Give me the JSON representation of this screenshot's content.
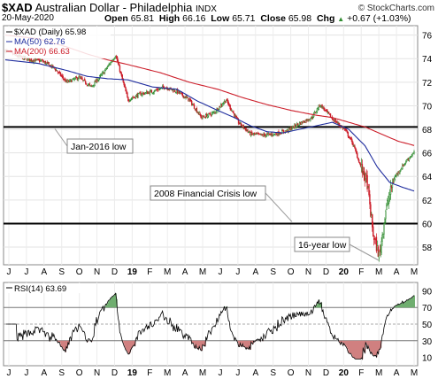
{
  "header": {
    "symbol": "$XAD",
    "name": "Australian Dollar - Philadelphia",
    "exchange": "INDX",
    "date": "20-May-2020",
    "open_label": "Open",
    "open": "65.81",
    "high_label": "High",
    "high": "66.16",
    "low_label": "Low",
    "low": "65.71",
    "close_label": "Close",
    "close": "65.98",
    "chg_label": "Chg",
    "chg": "+0.67 (+1.03%)",
    "chg_arrow": "▲",
    "watermark": "© StockCharts.com"
  },
  "chart_data": [
    {
      "type": "line",
      "legend": {
        "main": "$XAD (Daily) 65.98",
        "ma50": "MA(50) 62.76",
        "ma200": "MA(200) 66.63"
      },
      "colors": {
        "price": "#000000",
        "ma50": "#1f2d9e",
        "ma200": "#cc1e2a",
        "up": "#2e8b2e",
        "down": "#cc1e2a"
      },
      "ylim": [
        56.5,
        76.8
      ],
      "y_ticks": [
        58,
        60,
        62,
        64,
        66,
        68,
        70,
        72,
        74,
        76
      ],
      "x_tick_labels": [
        "J",
        "J",
        "A",
        "S",
        "O",
        "N",
        "D",
        "19",
        "F",
        "M",
        "A",
        "M",
        "J",
        "J",
        "A",
        "S",
        "O",
        "N",
        "D",
        "20",
        "F",
        "M",
        "A",
        "M"
      ],
      "price_keypoints": [
        [
          0,
          74.7
        ],
        [
          0.03,
          74.2
        ],
        [
          0.06,
          73.9
        ],
        [
          0.09,
          73.8
        ],
        [
          0.12,
          73.2
        ],
        [
          0.15,
          72.0
        ],
        [
          0.18,
          72.4
        ],
        [
          0.21,
          71.6
        ],
        [
          0.24,
          72.8
        ],
        [
          0.27,
          74.3
        ],
        [
          0.3,
          70.5
        ],
        [
          0.33,
          71.0
        ],
        [
          0.36,
          71.2
        ],
        [
          0.39,
          71.6
        ],
        [
          0.42,
          71.2
        ],
        [
          0.45,
          70.5
        ],
        [
          0.48,
          69.0
        ],
        [
          0.51,
          69.4
        ],
        [
          0.54,
          70.5
        ],
        [
          0.57,
          68.6
        ],
        [
          0.6,
          67.6
        ],
        [
          0.63,
          67.5
        ],
        [
          0.66,
          67.6
        ],
        [
          0.69,
          67.9
        ],
        [
          0.72,
          68.5
        ],
        [
          0.75,
          69.0
        ],
        [
          0.77,
          70.1
        ],
        [
          0.8,
          68.9
        ],
        [
          0.83,
          68.0
        ],
        [
          0.85,
          66.8
        ],
        [
          0.87,
          64.8
        ],
        [
          0.885,
          63.5
        ],
        [
          0.9,
          59.0
        ],
        [
          0.915,
          57.2
        ],
        [
          0.93,
          61.0
        ],
        [
          0.95,
          63.8
        ],
        [
          0.97,
          64.8
        ],
        [
          0.985,
          65.5
        ],
        [
          1.0,
          66.0
        ]
      ],
      "ma50_keypoints": [
        [
          0,
          73.9
        ],
        [
          0.08,
          73.6
        ],
        [
          0.15,
          73.0
        ],
        [
          0.2,
          72.5
        ],
        [
          0.25,
          72.3
        ],
        [
          0.3,
          72.2
        ],
        [
          0.36,
          71.6
        ],
        [
          0.42,
          71.4
        ],
        [
          0.47,
          70.4
        ],
        [
          0.52,
          69.6
        ],
        [
          0.56,
          69.0
        ],
        [
          0.6,
          68.3
        ],
        [
          0.64,
          67.8
        ],
        [
          0.68,
          67.7
        ],
        [
          0.72,
          68.0
        ],
        [
          0.76,
          68.3
        ],
        [
          0.8,
          68.6
        ],
        [
          0.84,
          68.0
        ],
        [
          0.88,
          66.6
        ],
        [
          0.91,
          64.8
        ],
        [
          0.94,
          63.5
        ],
        [
          0.97,
          63.1
        ],
        [
          1.0,
          62.76
        ]
      ],
      "ma200_keypoints": [
        [
          0,
          76.0
        ],
        [
          0.08,
          75.7
        ],
        [
          0.15,
          75.0
        ],
        [
          0.2,
          74.4
        ],
        [
          0.25,
          73.9
        ],
        [
          0.3,
          73.5
        ],
        [
          0.38,
          72.8
        ],
        [
          0.45,
          72.0
        ],
        [
          0.52,
          71.4
        ],
        [
          0.58,
          70.7
        ],
        [
          0.64,
          70.1
        ],
        [
          0.7,
          69.6
        ],
        [
          0.76,
          69.2
        ],
        [
          0.8,
          69.0
        ],
        [
          0.84,
          68.6
        ],
        [
          0.88,
          68.2
        ],
        [
          0.92,
          67.6
        ],
        [
          0.96,
          67.0
        ],
        [
          1.0,
          66.63
        ]
      ],
      "horizontal_lines": [
        68.2,
        60.0
      ],
      "annotations": {
        "jan2016": "Jan-2016 low",
        "gfc": "2008 Financial Crisis low",
        "sixteen": "16-year low"
      }
    },
    {
      "type": "line",
      "legend": "RSI(14) 63.69",
      "ylim": [
        0,
        100
      ],
      "y_ticks": [
        10,
        30,
        50,
        70,
        90
      ],
      "levels": [
        30,
        50,
        70
      ],
      "x_tick_labels": [
        "J",
        "J",
        "A",
        "S",
        "O",
        "N",
        "D",
        "19",
        "F",
        "M",
        "A",
        "M",
        "J",
        "J",
        "A",
        "S",
        "O",
        "N",
        "D",
        "20",
        "F",
        "M",
        "A",
        "M"
      ]
    }
  ]
}
